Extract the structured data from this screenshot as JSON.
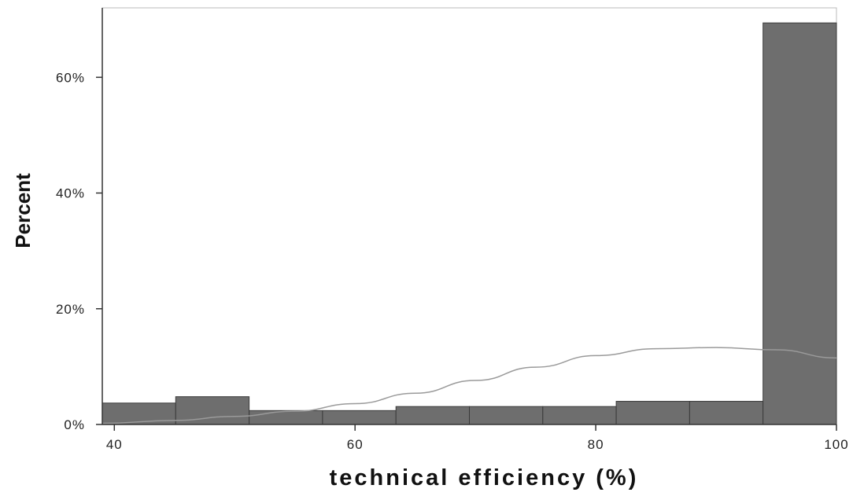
{
  "chart_data": {
    "type": "bar",
    "subtype": "histogram",
    "xlabel": "technical efficiency (%)",
    "ylabel": "Percent",
    "xlim": [
      39,
      100
    ],
    "ylim": [
      0,
      72
    ],
    "x_ticks": [
      40,
      60,
      80,
      100
    ],
    "x_tick_labels": [
      "40",
      "60",
      "80",
      "100"
    ],
    "y_ticks": [
      0,
      20,
      40,
      60
    ],
    "y_tick_labels": [
      "0%",
      "20%",
      "40%",
      "60%"
    ],
    "bins": [
      {
        "x0": 39.0,
        "x1": 45.1,
        "value": 3.7
      },
      {
        "x0": 45.1,
        "x1": 51.2,
        "value": 4.8
      },
      {
        "x0": 51.2,
        "x1": 57.3,
        "value": 2.4
      },
      {
        "x0": 57.3,
        "x1": 63.4,
        "value": 2.4
      },
      {
        "x0": 63.4,
        "x1": 69.5,
        "value": 3.1
      },
      {
        "x0": 69.5,
        "x1": 75.6,
        "value": 3.1
      },
      {
        "x0": 75.6,
        "x1": 81.7,
        "value": 3.1
      },
      {
        "x0": 81.7,
        "x1": 87.8,
        "value": 4.0
      },
      {
        "x0": 87.8,
        "x1": 93.9,
        "value": 4.0
      },
      {
        "x0": 93.9,
        "x1": 100.0,
        "value": 69.4
      }
    ],
    "normal_curve": {
      "x": [
        39,
        45,
        50,
        55,
        60,
        65,
        70,
        75,
        80,
        85,
        90,
        95,
        100
      ],
      "y": [
        0.2,
        0.7,
        1.4,
        2.3,
        3.6,
        5.4,
        7.6,
        9.9,
        11.9,
        13.1,
        13.3,
        12.9,
        11.5
      ]
    },
    "grid": false,
    "legend": "none",
    "colors": {
      "bar_fill": "#6e6e6e",
      "bar_stroke": "#3a3a3a",
      "curve": "#9a9a9a",
      "axis": "#333333",
      "plot_border": "#bbbbbb"
    }
  }
}
